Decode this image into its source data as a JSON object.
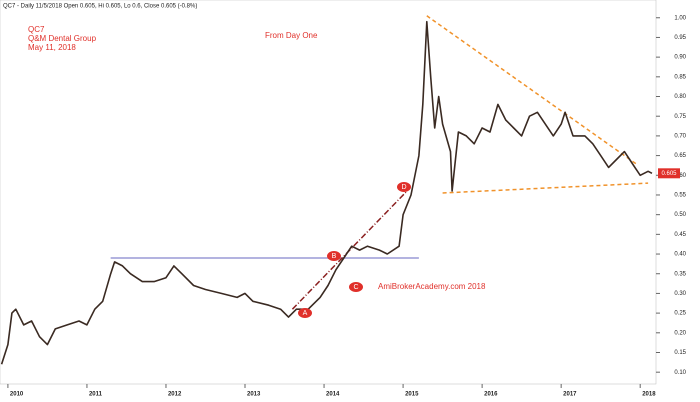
{
  "chart_data": {
    "type": "line",
    "header": "QC7 - Daily 11/5/2018 Open 0.605, Hi 0.605, Lo 0.6, Close 0.605 (-0.8%)",
    "title": "QC7",
    "subtitle": "Q&M Dental Group",
    "date_label": "May 11, 2018",
    "annotations": [
      "From Day One",
      "AmiBrokerAcademy.com  2018",
      "A",
      "B",
      "C",
      "D"
    ],
    "last_value_label": "0.605",
    "xlim": [
      2009.9,
      2018.2
    ],
    "xticks": [
      2010,
      2011,
      2012,
      2013,
      2014,
      2015,
      2016,
      2017,
      2018
    ],
    "ylim": [
      0.07,
      1.04
    ],
    "yticks": [
      {
        "value": 0.1,
        "label": "0.10"
      },
      {
        "value": 0.15,
        "label": "0.15"
      },
      {
        "value": 0.2,
        "label": "0.20"
      },
      {
        "value": 0.25,
        "label": "0.25"
      },
      {
        "value": 0.3,
        "label": "0.30"
      },
      {
        "value": 0.35,
        "label": "0.35"
      },
      {
        "value": 0.4,
        "label": "0.40"
      },
      {
        "value": 0.45,
        "label": "0.45"
      },
      {
        "value": 0.5,
        "label": "0.50"
      },
      {
        "value": 0.55,
        "label": "0.55"
      },
      {
        "value": 0.6,
        "label": "0.60"
      },
      {
        "value": 0.65,
        "label": "0.65"
      },
      {
        "value": 0.7,
        "label": "0.70"
      },
      {
        "value": 0.75,
        "label": "0.75"
      },
      {
        "value": 0.8,
        "label": "0.80"
      },
      {
        "value": 0.85,
        "label": "0.85"
      },
      {
        "value": 0.9,
        "label": "0.90"
      },
      {
        "value": 0.95,
        "label": "0.95"
      },
      {
        "value": 1.0,
        "label": "1.00"
      }
    ],
    "color": "#3a2a22",
    "x": [
      2009.92,
      2010.0,
      2010.05,
      2010.1,
      2010.2,
      2010.3,
      2010.4,
      2010.5,
      2010.6,
      2010.75,
      2010.9,
      2011.0,
      2011.1,
      2011.2,
      2011.3,
      2011.35,
      2011.45,
      2011.55,
      2011.7,
      2011.85,
      2012.0,
      2012.1,
      2012.2,
      2012.35,
      2012.5,
      2012.7,
      2012.9,
      2013.0,
      2013.1,
      2013.3,
      2013.45,
      2013.55,
      2013.65,
      2013.8,
      2013.95,
      2014.05,
      2014.15,
      2014.25,
      2014.35,
      2014.45,
      2014.55,
      2014.7,
      2014.8,
      2014.95,
      2015.0,
      2015.1,
      2015.2,
      2015.25,
      2015.3,
      2015.35,
      2015.4,
      2015.45,
      2015.5,
      2015.6,
      2015.62,
      2015.7,
      2015.8,
      2015.9,
      2016.0,
      2016.1,
      2016.2,
      2016.3,
      2016.4,
      2016.5,
      2016.6,
      2016.7,
      2016.8,
      2016.9,
      2017.0,
      2017.05,
      2017.15,
      2017.3,
      2017.4,
      2017.5,
      2017.6,
      2017.7,
      2017.8,
      2017.9,
      2018.0,
      2018.1,
      2018.15
    ],
    "values": [
      0.12,
      0.17,
      0.25,
      0.26,
      0.22,
      0.23,
      0.19,
      0.17,
      0.21,
      0.22,
      0.23,
      0.22,
      0.26,
      0.28,
      0.35,
      0.38,
      0.37,
      0.35,
      0.33,
      0.33,
      0.34,
      0.37,
      0.35,
      0.32,
      0.31,
      0.3,
      0.29,
      0.3,
      0.28,
      0.27,
      0.26,
      0.24,
      0.26,
      0.26,
      0.29,
      0.32,
      0.36,
      0.39,
      0.42,
      0.41,
      0.42,
      0.41,
      0.4,
      0.42,
      0.5,
      0.55,
      0.65,
      0.78,
      0.99,
      0.85,
      0.72,
      0.8,
      0.73,
      0.66,
      0.56,
      0.71,
      0.7,
      0.68,
      0.72,
      0.71,
      0.78,
      0.74,
      0.72,
      0.7,
      0.75,
      0.76,
      0.73,
      0.7,
      0.73,
      0.76,
      0.7,
      0.7,
      0.68,
      0.65,
      0.62,
      0.64,
      0.66,
      0.63,
      0.6,
      0.61,
      0.605
    ],
    "trendlines": [
      {
        "color": "#f0922a",
        "x": [
          2015.3,
          2017.97
        ],
        "y": [
          1.005,
          0.626
        ]
      },
      {
        "color": "#f0922a",
        "x": [
          2015.5,
          2018.1
        ],
        "y": [
          0.555,
          0.58
        ]
      },
      {
        "color": "#9a9ad6",
        "x": [
          2011.3,
          2015.2
        ],
        "y": [
          0.39,
          0.39
        ]
      },
      {
        "color": "#8b2020",
        "x": [
          2013.6,
          2015.05
        ],
        "y": [
          0.26,
          0.56
        ]
      }
    ]
  }
}
